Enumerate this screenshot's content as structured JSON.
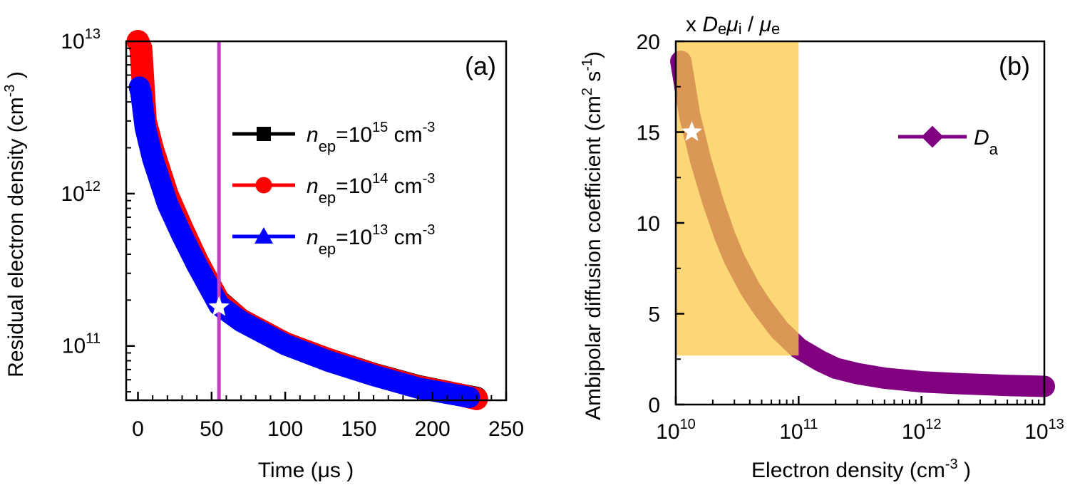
{
  "chart_data": [
    {
      "type": "line",
      "panel_label": "(a)",
      "xlabel": "Time (μs )",
      "ylabel": "Residual electron density (cm⁻³ )",
      "ylabel_main": "Residual electron density (cm",
      "ylabel_sup": "-3",
      "ylabel_tail": " )",
      "xscale": "linear",
      "yscale": "log",
      "xlim": [
        -8,
        250
      ],
      "ylim": [
        44000000000.0,
        10000000000000.0
      ],
      "xticks": [
        0,
        50,
        100,
        150,
        200,
        250
      ],
      "xtick_labels": [
        "0",
        "50",
        "100",
        "150",
        "200",
        "250"
      ],
      "yticks": [
        100000000000.0,
        1000000000000.0,
        10000000000000.0
      ],
      "ytick_labels": [
        {
          "base": "10",
          "exp": "11"
        },
        {
          "base": "10",
          "exp": "12"
        },
        {
          "base": "10",
          "exp": "13"
        }
      ],
      "vertical_line": {
        "x": 55,
        "color": "#c040c0"
      },
      "star_marker": {
        "x": 55,
        "y": 180000000000.0
      },
      "legend_position": "center-right",
      "series": [
        {
          "name": "n_ep=10^15 cm^-3",
          "label_main": "n",
          "label_sub": "ep",
          "label_eq": "=10",
          "label_exp": "15",
          "label_unit": " cm",
          "label_unit_exp": "-3",
          "color": "#000000",
          "marker": "square",
          "x": [
            2,
            5,
            10,
            20,
            30,
            40,
            55,
            70,
            100,
            130,
            160,
            190,
            220,
            230
          ],
          "y": [
            5000000000000.0,
            2800000000000.0,
            1900000000000.0,
            950000000000.0,
            580000000000.0,
            360000000000.0,
            200000000000.0,
            150000000000.0,
            105000000000.0,
            82000000000.0,
            66000000000.0,
            55000000000.0,
            48000000000.0,
            46000000000.0
          ]
        },
        {
          "name": "n_ep=10^14 cm^-3",
          "label_main": "n",
          "label_sub": "ep",
          "label_eq": "=10",
          "label_exp": "14",
          "label_unit": " cm",
          "label_unit_exp": "-3",
          "color": "#ff0000",
          "marker": "circle",
          "x": [
            0,
            2,
            5,
            10,
            20,
            30,
            40,
            55,
            70,
            100,
            130,
            160,
            190,
            220,
            230
          ],
          "y": [
            10000000000000.0,
            9000000000000.0,
            3000000000000.0,
            1950000000000.0,
            980000000000.0,
            590000000000.0,
            365000000000.0,
            195000000000.0,
            148000000000.0,
            104000000000.0,
            81000000000.0,
            65000000000.0,
            54000000000.0,
            47500000000.0,
            45000000000.0
          ]
        },
        {
          "name": "n_ep=10^13 cm^-3",
          "label_main": "n",
          "label_sub": "ep",
          "label_eq": "=10",
          "label_exp": "13",
          "label_unit": " cm",
          "label_unit_exp": "-3",
          "color": "#0000ff",
          "marker": "triangle",
          "x": [
            1,
            2,
            5,
            10,
            20,
            30,
            40,
            55,
            70,
            100,
            130,
            160,
            190,
            225
          ],
          "y": [
            5000000000000.0,
            4600000000000.0,
            2700000000000.0,
            1700000000000.0,
            860000000000.0,
            530000000000.0,
            340000000000.0,
            185000000000.0,
            145000000000.0,
            102000000000.0,
            79000000000.0,
            64000000000.0,
            53000000000.0,
            46000000000.0
          ]
        }
      ]
    },
    {
      "type": "line",
      "panel_label": "(b)",
      "xlabel": "Electron density (cm⁻³ )",
      "xlabel_main": "Electron density (cm",
      "xlabel_sup": "-3",
      "xlabel_tail": " )",
      "ylabel": "Ambipolar diffusion coefficient (cm² s⁻¹)",
      "ylabel_main": "Ambipolar diffusion coefficient (cm",
      "ylabel_sup2": "2",
      "ylabel_mid": " s",
      "ylabel_sup1": "-1",
      "ylabel_tail": ")",
      "top_annotation": {
        "prefix": "x ",
        "d": "D",
        "d_sub": "e",
        "mu": "μ",
        "mu_sub": "i",
        "slash": " / ",
        "mu2": "μ",
        "mu2_sub": "e"
      },
      "xscale": "log",
      "yscale": "linear",
      "xlim": [
        10000000000.0,
        10000000000000.0
      ],
      "ylim": [
        0,
        20
      ],
      "xticks": [
        10000000000.0,
        100000000000.0,
        1000000000000.0,
        10000000000000.0
      ],
      "xtick_labels": [
        {
          "base": "10",
          "exp": "10"
        },
        {
          "base": "10",
          "exp": "11"
        },
        {
          "base": "10",
          "exp": "12"
        },
        {
          "base": "10",
          "exp": "13"
        }
      ],
      "yticks": [
        0,
        5,
        10,
        15,
        20
      ],
      "ytick_labels": [
        "0",
        "5",
        "10",
        "15",
        "20"
      ],
      "highlight_region": {
        "x": [
          10000000000.0,
          100000000000.0
        ],
        "y": [
          2.7,
          20
        ],
        "color": "#f9c947"
      },
      "star_marker": {
        "x": 13500000000.0,
        "y": 15
      },
      "legend_position": "right",
      "series": [
        {
          "name": "D_a",
          "label_main": "D",
          "label_sub": "a",
          "color": "#800080",
          "marker": "diamond",
          "x": [
            11000000000.0,
            13000000000.0,
            16000000000.0,
            20000000000.0,
            25000000000.0,
            30000000000.0,
            40000000000.0,
            50000000000.0,
            70000000000.0,
            100000000000.0,
            150000000000.0,
            200000000000.0,
            300000000000.0,
            500000000000.0,
            1000000000000.0,
            2000000000000.0,
            5000000000000.0,
            10000000000000.0
          ],
          "y": [
            18.9,
            15.9,
            13.4,
            11.2,
            9.3,
            8.0,
            6.4,
            5.4,
            4.1,
            3.1,
            2.4,
            2.0,
            1.7,
            1.45,
            1.25,
            1.15,
            1.05,
            1.0
          ]
        }
      ]
    }
  ]
}
